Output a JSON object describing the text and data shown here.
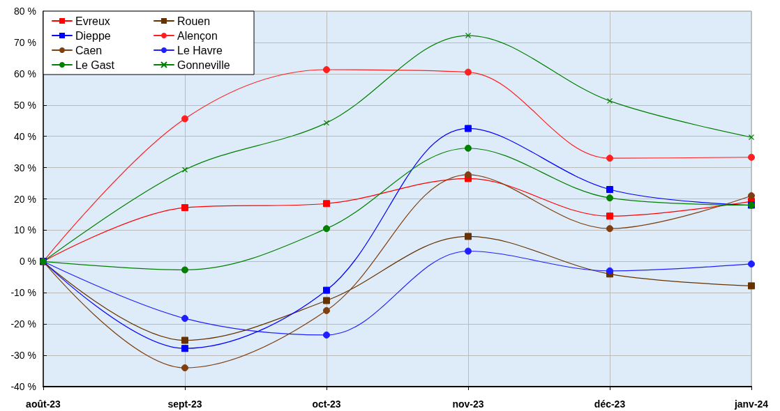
{
  "chart_data": {
    "type": "line",
    "categories": [
      "août-23",
      "sept-23",
      "oct-23",
      "nov-23",
      "déc-23",
      "janv-24"
    ],
    "series": [
      {
        "name": "Evreux",
        "color": "#ff0000",
        "marker": "square",
        "values": [
          0,
          17.2,
          18.5,
          26.5,
          14.5,
          19.2
        ]
      },
      {
        "name": "Rouen",
        "color": "#663300",
        "marker": "square",
        "values": [
          0,
          -25.2,
          -12.5,
          8,
          -4,
          -7.8
        ]
      },
      {
        "name": "Dieppe",
        "color": "#0000ff",
        "marker": "square",
        "values": [
          0,
          -27.8,
          -9.2,
          42.5,
          23,
          18
        ]
      },
      {
        "name": "Alençon",
        "color": "#ff1f1f",
        "marker": "circle",
        "values": [
          0,
          45.6,
          61.3,
          60.5,
          33,
          33.3
        ]
      },
      {
        "name": "Caen",
        "color": "#7f3f10",
        "marker": "circle",
        "values": [
          0,
          -34,
          -15.7,
          27.7,
          10.5,
          21
        ]
      },
      {
        "name": "Le Havre",
        "color": "#1f1fff",
        "marker": "circle",
        "values": [
          0,
          -18.2,
          -23.5,
          3.3,
          -3,
          -0.8
        ]
      },
      {
        "name": "Le Gast",
        "color": "#008000",
        "marker": "circle",
        "values": [
          0,
          -2.7,
          10.5,
          36.2,
          20.3,
          18
        ]
      },
      {
        "name": "Gonneville",
        "color": "#008000",
        "marker": "cross",
        "values": [
          0,
          29.3,
          44.3,
          72.2,
          51.3,
          39.7
        ]
      }
    ],
    "ylim": [
      -40,
      80
    ],
    "yticks": [
      {
        "value": -40,
        "label": "-40 %"
      },
      {
        "value": -30,
        "label": "-30 %"
      },
      {
        "value": -20,
        "label": "-20 %"
      },
      {
        "value": -10,
        "label": "-10 %"
      },
      {
        "value": 0,
        "label": "0 %"
      },
      {
        "value": 10,
        "label": "10 %"
      },
      {
        "value": 20,
        "label": "20 %"
      },
      {
        "value": 30,
        "label": "30 %"
      },
      {
        "value": 40,
        "label": "40 %"
      },
      {
        "value": 50,
        "label": "50 %"
      },
      {
        "value": 60,
        "label": "60 %"
      },
      {
        "value": 70,
        "label": "70 %"
      },
      {
        "value": 80,
        "label": "80 %"
      }
    ],
    "grid": true,
    "legend": "top left",
    "line_style": "solid"
  }
}
